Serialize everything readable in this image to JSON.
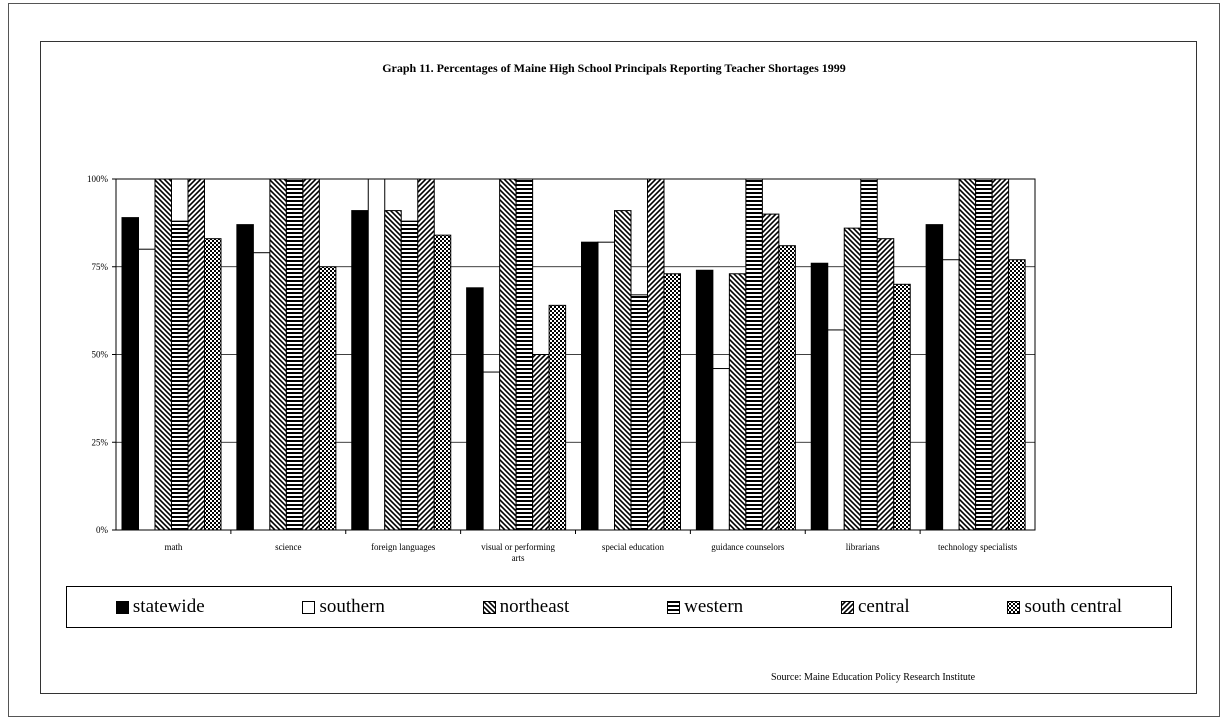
{
  "chart_data": {
    "type": "bar",
    "title": "Graph 11. Percentages of Maine High School Principals Reporting Teacher Shortages 1999",
    "categories": [
      "math",
      "science",
      "foreign languages",
      "visual or performing arts",
      "special education",
      "guidance counselors",
      "librarians",
      "technology specialists"
    ],
    "category_lines": [
      [
        "math"
      ],
      [
        "science"
      ],
      [
        "foreign languages"
      ],
      [
        "visual or performing",
        "arts"
      ],
      [
        "special education"
      ],
      [
        "guidance counselors"
      ],
      [
        "librarians"
      ],
      [
        "technology specialists"
      ]
    ],
    "y_ticks": [
      "0%",
      "25%",
      "50%",
      "75%",
      "100%"
    ],
    "ylim": [
      0,
      100
    ],
    "grid": true,
    "legend_position": "bottom",
    "series": [
      {
        "name": "statewide",
        "pattern": "solid",
        "values": [
          89,
          87,
          91,
          69,
          82,
          74,
          76,
          87
        ]
      },
      {
        "name": "southern",
        "pattern": "empty",
        "values": [
          80,
          79,
          100,
          45,
          82,
          46,
          57,
          77
        ]
      },
      {
        "name": "northeast",
        "pattern": "diag-back",
        "values": [
          100,
          100,
          91,
          100,
          91,
          73,
          86,
          100
        ]
      },
      {
        "name": "western",
        "pattern": "horizontal",
        "values": [
          88,
          100,
          88,
          100,
          67,
          100,
          100,
          100
        ]
      },
      {
        "name": "central",
        "pattern": "diag-fwd",
        "values": [
          100,
          100,
          100,
          50,
          100,
          90,
          83,
          100
        ]
      },
      {
        "name": "south central",
        "pattern": "checker",
        "values": [
          83,
          75,
          84,
          64,
          73,
          81,
          70,
          77
        ]
      }
    ]
  },
  "source": "Source: Maine Education Policy Research Institute"
}
